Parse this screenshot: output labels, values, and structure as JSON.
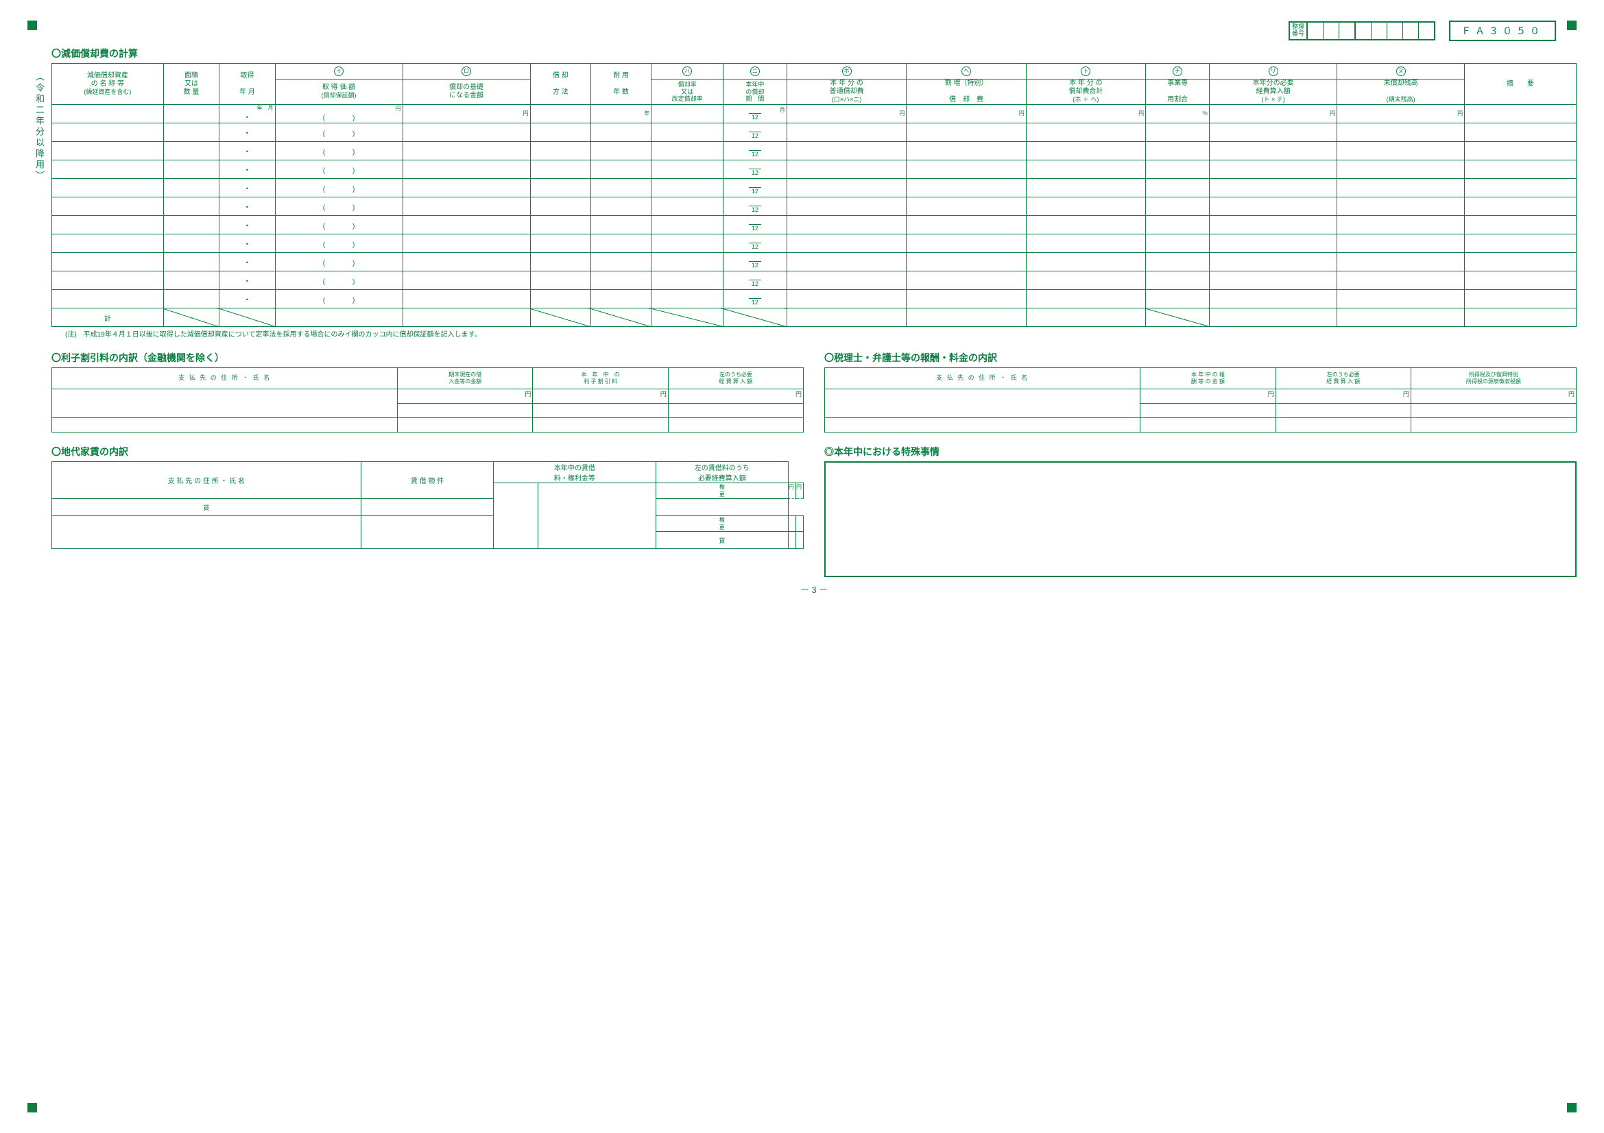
{
  "doc": {
    "seiri_label": "整理\n番号",
    "form_id": "ＦＡ３０５０",
    "vert": "（令和二年分以降用）",
    "page": "－ 3 －"
  },
  "s1": {
    "title": "〇減価償却費の計算",
    "cols": {
      "c1": {
        "l1": "減価償却資産",
        "l2": "の 名 称 等",
        "l3": "(繰延資産を含む)"
      },
      "c2": {
        "l1": "面積",
        "l2": "又は",
        "l3": "数 量"
      },
      "c3": {
        "l1": "取得",
        "l3": "年 月"
      },
      "c4": {
        "m": "イ",
        "l1": "取 得 価 額",
        "l3": "(償却保証額)"
      },
      "c5": {
        "m": "ロ",
        "l1": "償却の基礎",
        "l3": "になる金額"
      },
      "c6": {
        "l1": "償 却",
        "l3": "方 法"
      },
      "c7": {
        "l1": "耐 用",
        "l3": "年 数"
      },
      "c8": {
        "m": "ハ",
        "l1": "償却率",
        "l2": "又は",
        "l3": "改定償却率"
      },
      "c9": {
        "m": "ニ",
        "l1": "本年中",
        "l2": "の償却",
        "l3": "期　間"
      },
      "c10": {
        "m": "ホ",
        "l1": "本 年 分 の",
        "l2": "普通償却費",
        "l3": "(ロ×ハ×ニ)"
      },
      "c11": {
        "m": "ヘ",
        "l1": "割 増（特別）",
        "l3": "償　却　費"
      },
      "c12": {
        "m": "ト",
        "l1": "本 年 分 の",
        "l2": "償却費合計",
        "l3": "(ホ ＋ ヘ)"
      },
      "c13": {
        "m": "チ",
        "l1": "事業専",
        "l3": "用割合"
      },
      "c14": {
        "m": "リ",
        "l1": "本年分の必要",
        "l2": "経費算入額",
        "l3": "(ト × チ)"
      },
      "c15": {
        "m": "ヌ",
        "l1": "未償却残高",
        "l3": "(期末残高)"
      },
      "c16": {
        "l1": "摘　　要"
      }
    },
    "hdr2": {
      "c3": "年　月",
      "c4": "円",
      "c5": "円",
      "c7": "年",
      "c9": "月",
      "c10": "円",
      "c11": "円",
      "c12": "円",
      "c13": "％",
      "c14": "円",
      "c15": "円"
    },
    "frac": "12",
    "total": "計",
    "note": "(注)　平成19年４月１日以後に取得した減価償却資産について定率法を採用する場合にのみイ欄のカッコ内に償却保証額を記入します。"
  },
  "s2": {
    "title": "〇利子割引料の内訳（金融機関を除く）",
    "h1": "支 払 先 の 住 所 ・ 氏 名",
    "h2": "期末現在の借\n入金等の金額",
    "h3": "本　年　中　の\n利 子 割 引 料",
    "h4": "左のうち必要\n経 費 算 入 額",
    "yen": "円"
  },
  "s3": {
    "title": "〇税理士・弁護士等の報酬・料金の内訳",
    "h1": "支 払 先 の 住 所 ・ 氏 名",
    "h2": "本 年 中 の 報\n酬 等 の 金 額",
    "h3": "左のうち必要\n経 費 算 入 額",
    "h4": "所得税及び復興特別\n所得税の源泉徴収税額",
    "yen": "円"
  },
  "s4": {
    "title": "〇地代家賃の内訳",
    "h1": "支 払 先 の 住 所 ・ 氏 名",
    "h2": "賃 借 物 件",
    "h3": "本年中の賃借\n料・権利金等",
    "h4": "左の賃借料のうち\n必要経費算入額",
    "sub1": "権",
    "sub1b": "更",
    "sub2": "賃",
    "yen": "円"
  },
  "s5": {
    "title": "◎本年中における特殊事情"
  },
  "style": {
    "green": "#0a8040"
  }
}
